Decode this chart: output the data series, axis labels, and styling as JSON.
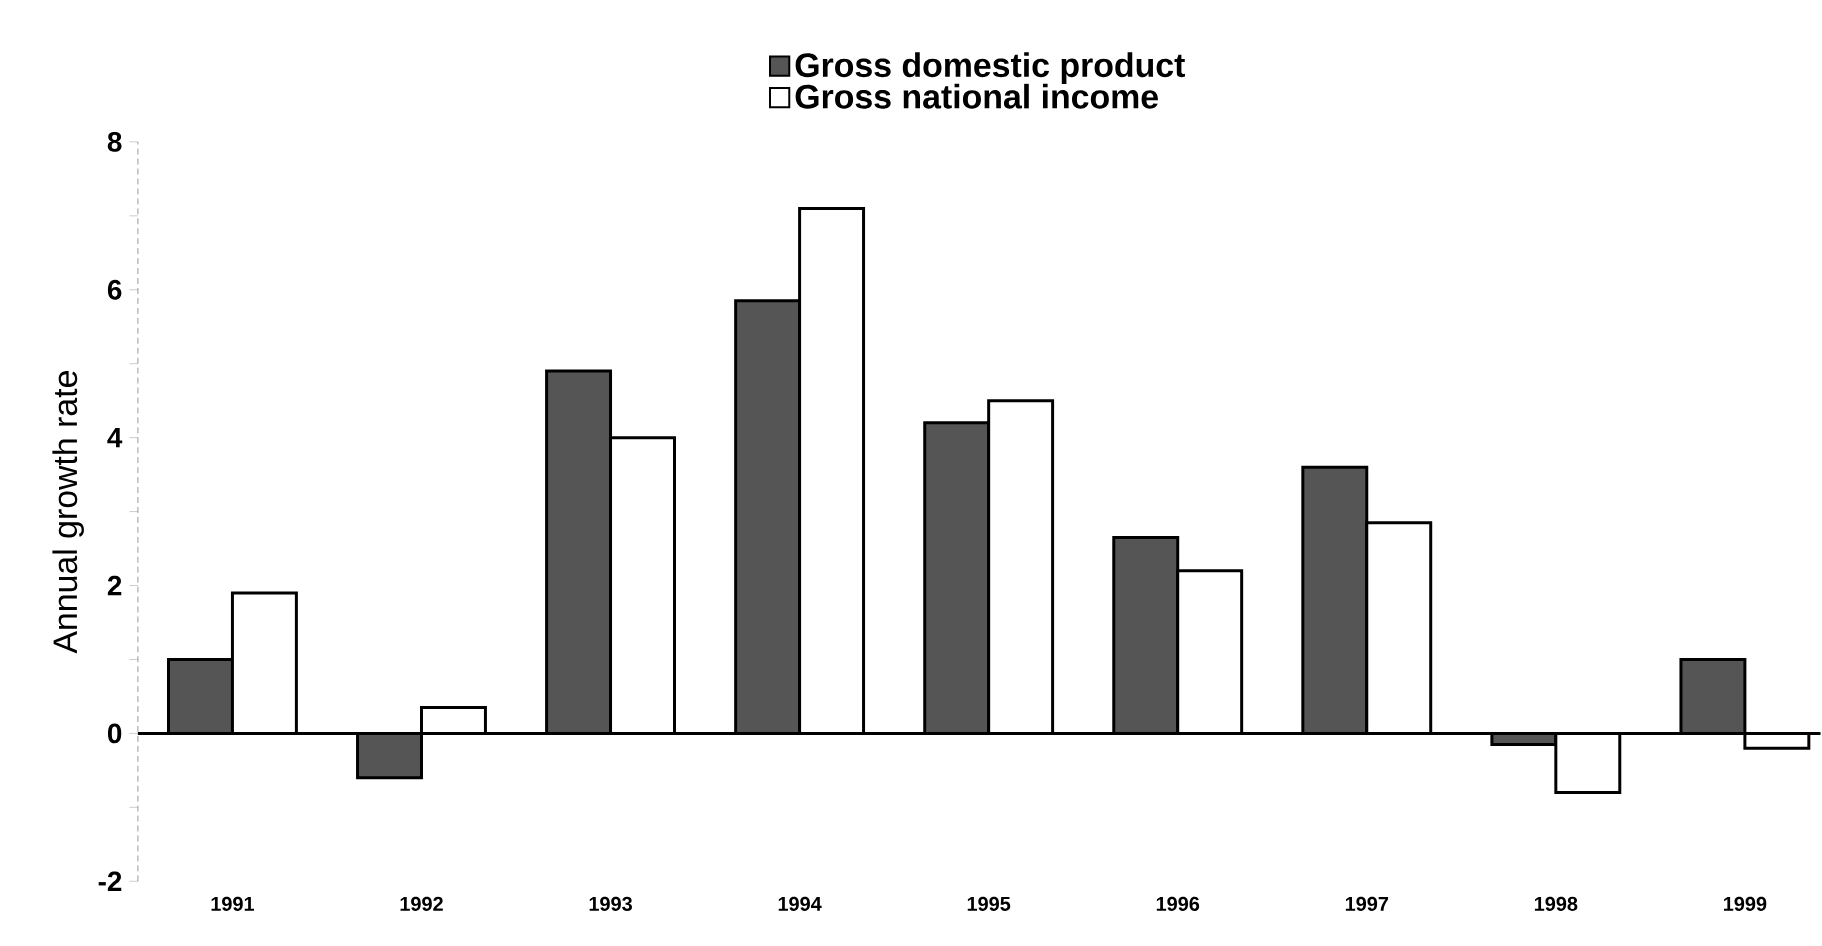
{
  "chart_data": {
    "type": "bar",
    "ylabel": "Annual growth rate",
    "categories": [
      "1991",
      "1992",
      "1993",
      "1994",
      "1995",
      "1996",
      "1997",
      "1998",
      "1999"
    ],
    "series": [
      {
        "name": "Gross domestic product",
        "color": "#555555",
        "values": [
          1.0,
          -0.6,
          4.9,
          5.85,
          4.2,
          2.65,
          3.6,
          -0.15,
          1.0
        ]
      },
      {
        "name": "Gross national income",
        "color": "#ffffff",
        "values": [
          1.9,
          0.35,
          4.0,
          7.1,
          4.5,
          2.2,
          2.85,
          -0.8,
          -0.2
        ]
      }
    ],
    "ylim": [
      -2,
      8
    ],
    "yticks": [
      -2,
      {
        "value": -1,
        "label": null
      },
      0,
      {
        "value": 1,
        "label": null
      },
      2,
      {
        "value": 3,
        "label": null
      },
      4,
      {
        "value": 5,
        "label": null
      },
      6,
      {
        "value": 7,
        "label": null
      },
      8
    ],
    "ref_lines": [
      {
        "axis": "y",
        "value": 0,
        "color": "#000000"
      }
    ],
    "grid": false,
    "legend": "top"
  }
}
